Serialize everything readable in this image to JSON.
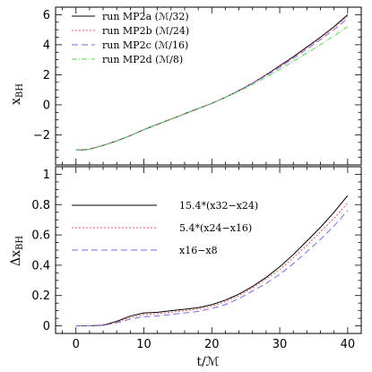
{
  "chart_data": [
    {
      "type": "line",
      "panel": "top",
      "ylabel": "x_BH",
      "xlim": [
        -3,
        42
      ],
      "ylim": [
        -4,
        6.5
      ],
      "xticks_labeled": false,
      "yticks": [
        -2,
        0,
        2,
        4,
        6
      ],
      "grid": false,
      "legend_position": "top-left",
      "series": [
        {
          "name": "run MP2a (ℳ/32)",
          "color": "#000000",
          "dash": "",
          "x": [
            0,
            1,
            2,
            4,
            6,
            8,
            10,
            12,
            14,
            16,
            18,
            20,
            22,
            24,
            26,
            28,
            30,
            32,
            34,
            36,
            38,
            40
          ],
          "y": [
            -3.0,
            -3.0,
            -2.95,
            -2.7,
            -2.4,
            -2.05,
            -1.65,
            -1.3,
            -0.95,
            -0.6,
            -0.25,
            0.1,
            0.5,
            0.95,
            1.45,
            2.0,
            2.6,
            3.2,
            3.85,
            4.5,
            5.2,
            6.0
          ]
        },
        {
          "name": "run MP2b (ℳ/24)",
          "color": "#e05a5a",
          "dash": "2,2",
          "x": [
            0,
            1,
            2,
            4,
            6,
            8,
            10,
            12,
            14,
            16,
            18,
            20,
            22,
            24,
            26,
            28,
            30,
            32,
            34,
            36,
            38,
            40
          ],
          "y": [
            -3.0,
            -3.0,
            -2.95,
            -2.7,
            -2.4,
            -2.05,
            -1.65,
            -1.3,
            -0.95,
            -0.6,
            -0.25,
            0.1,
            0.5,
            0.95,
            1.45,
            2.0,
            2.55,
            3.15,
            3.8,
            4.45,
            5.15,
            5.9
          ]
        },
        {
          "name": "run MP2c (ℳ/16)",
          "color": "#7a6ae0",
          "dash": "7,4",
          "x": [
            0,
            1,
            2,
            4,
            6,
            8,
            10,
            12,
            14,
            16,
            18,
            20,
            22,
            24,
            26,
            28,
            30,
            32,
            34,
            36,
            38,
            40
          ],
          "y": [
            -3.0,
            -3.0,
            -2.95,
            -2.7,
            -2.4,
            -2.05,
            -1.65,
            -1.3,
            -0.95,
            -0.6,
            -0.25,
            0.1,
            0.5,
            0.95,
            1.45,
            1.95,
            2.5,
            3.1,
            3.7,
            4.35,
            5.0,
            5.75
          ]
        },
        {
          "name": "run MP2d (ℳ/8)",
          "color": "#5ad45a",
          "dash": "6,2,1,2",
          "x": [
            0,
            1,
            2,
            4,
            6,
            8,
            10,
            12,
            14,
            16,
            18,
            20,
            22,
            24,
            26,
            28,
            30,
            32,
            34,
            36,
            38,
            40
          ],
          "y": [
            -3.0,
            -3.0,
            -2.95,
            -2.7,
            -2.4,
            -2.05,
            -1.65,
            -1.3,
            -0.95,
            -0.6,
            -0.25,
            0.1,
            0.5,
            0.9,
            1.35,
            1.85,
            2.35,
            2.9,
            3.45,
            4.0,
            4.6,
            5.2
          ]
        }
      ]
    },
    {
      "type": "line",
      "panel": "bottom",
      "xlabel": "t/ℳ",
      "ylabel": "Δx_BH",
      "xlim": [
        -3,
        42
      ],
      "ylim": [
        -0.05,
        1.05
      ],
      "xticks": [
        0,
        10,
        20,
        30,
        40
      ],
      "yticks": [
        0,
        0.2,
        0.4,
        0.6,
        0.8,
        1
      ],
      "grid": false,
      "legend_position": "top-left",
      "series": [
        {
          "name": "15.4*(x32−x24)",
          "color": "#000000",
          "dash": "",
          "x": [
            0,
            2,
            4,
            6,
            8,
            10,
            12,
            14,
            16,
            18,
            20,
            22,
            24,
            26,
            28,
            30,
            32,
            34,
            36,
            38,
            40
          ],
          "y": [
            0.0,
            0.0,
            0.005,
            0.03,
            0.065,
            0.085,
            0.09,
            0.1,
            0.11,
            0.12,
            0.14,
            0.17,
            0.21,
            0.26,
            0.32,
            0.39,
            0.47,
            0.56,
            0.65,
            0.75,
            0.86
          ]
        },
        {
          "name": "5.4*(x24−x16)",
          "color": "#e05a5a",
          "dash": "2,2",
          "x": [
            0,
            2,
            4,
            6,
            8,
            10,
            12,
            14,
            16,
            18,
            20,
            22,
            24,
            26,
            28,
            30,
            32,
            34,
            36,
            38,
            40
          ],
          "y": [
            0.0,
            0.0,
            0.004,
            0.025,
            0.055,
            0.075,
            0.08,
            0.09,
            0.1,
            0.11,
            0.13,
            0.16,
            0.2,
            0.25,
            0.31,
            0.37,
            0.45,
            0.53,
            0.62,
            0.71,
            0.81
          ]
        },
        {
          "name": "x16−x8",
          "color": "#7a6ae0",
          "dash": "7,4",
          "x": [
            0,
            2,
            4,
            6,
            8,
            10,
            12,
            14,
            16,
            18,
            20,
            22,
            24,
            26,
            28,
            30,
            32,
            34,
            36,
            38,
            40
          ],
          "y": [
            0.0,
            0.0,
            0.003,
            0.02,
            0.045,
            0.06,
            0.065,
            0.075,
            0.085,
            0.095,
            0.115,
            0.14,
            0.18,
            0.23,
            0.28,
            0.34,
            0.41,
            0.49,
            0.57,
            0.66,
            0.76
          ]
        }
      ]
    }
  ]
}
